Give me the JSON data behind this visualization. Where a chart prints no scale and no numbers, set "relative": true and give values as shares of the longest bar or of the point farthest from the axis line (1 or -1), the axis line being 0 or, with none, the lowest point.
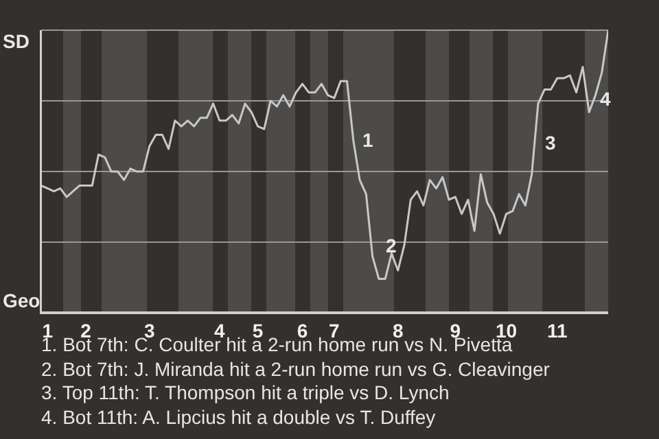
{
  "chart_data": {
    "type": "line",
    "relative": true,
    "categories": [
      null,
      "1",
      null,
      null,
      null,
      null,
      null,
      "2",
      null,
      null,
      null,
      null,
      null,
      null,
      null,
      null,
      null,
      "3",
      null,
      null,
      null,
      null,
      null,
      null,
      null,
      null,
      null,
      null,
      "4",
      null,
      null,
      null,
      null,
      null,
      "5",
      null,
      null,
      null,
      null,
      null,
      null,
      "6",
      null,
      null,
      null,
      null,
      "7",
      null,
      null,
      null,
      null,
      null,
      null,
      null,
      null,
      null,
      "8",
      null,
      null,
      null,
      null,
      null,
      null,
      null,
      null,
      "9",
      null,
      null,
      null,
      null,
      null,
      null,
      null,
      "10",
      null,
      null,
      null,
      null,
      null,
      null,
      null,
      "11",
      null,
      null,
      null,
      null,
      null,
      null,
      null,
      null
    ],
    "series": [
      {
        "color": "#c8c8c8",
        "values": [
          0.45,
          0.44,
          0.43,
          0.44,
          0.41,
          0.43,
          0.45,
          0.45,
          0.45,
          0.56,
          0.55,
          0.5,
          0.5,
          0.47,
          0.51,
          0.5,
          0.5,
          0.59,
          0.63,
          0.63,
          0.58,
          0.68,
          0.66,
          0.68,
          0.66,
          0.69,
          0.69,
          0.74,
          0.68,
          0.68,
          0.7,
          0.67,
          0.74,
          0.71,
          0.66,
          0.65,
          0.75,
          0.73,
          0.77,
          0.73,
          0.78,
          0.81,
          0.78,
          0.78,
          0.81,
          0.77,
          0.76,
          0.82,
          0.82,
          0.61,
          0.47,
          0.42,
          0.2,
          0.12,
          0.12,
          0.21,
          0.15,
          0.24,
          0.4,
          0.43,
          0.38,
          0.47,
          0.44,
          0.48,
          0.4,
          0.41,
          0.35,
          0.4,
          0.29,
          0.49,
          0.39,
          0.35,
          0.28,
          0.35,
          0.36,
          0.42,
          0.38,
          0.49,
          0.74,
          0.79,
          0.79,
          0.83,
          0.83,
          0.84,
          0.78,
          0.87,
          0.71,
          0.77,
          0.85,
          1
        ]
      }
    ],
    "grid": "y",
    "marker": "none",
    "line_style": "solid",
    "annotations": [
      "SD",
      "Geo",
      "1",
      "2",
      "3",
      "4",
      "1. Bot 7th: C. Coulter hit a 2-run home run vs N. Pivetta",
      "2. Bot 7th: J. Miranda hit a 2-run home run vs G. Cleavinger",
      "3. Top 11th: T. Thompson hit a triple vs D. Lynch",
      "4. Bot 11th: A. Lipcius hit a double vs T. Duffey"
    ]
  }
}
